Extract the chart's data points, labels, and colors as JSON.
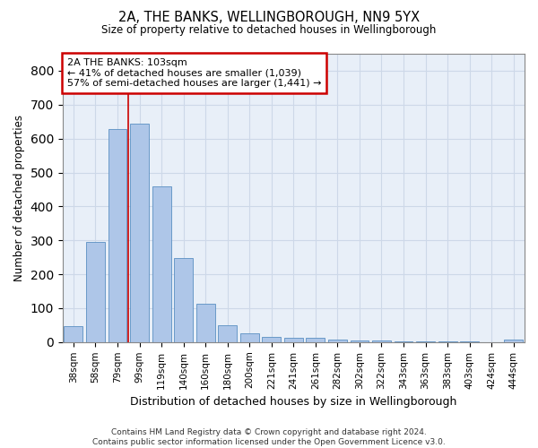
{
  "title_line1": "2A, THE BANKS, WELLINGBOROUGH, NN9 5YX",
  "title_line2": "Size of property relative to detached houses in Wellingborough",
  "xlabel": "Distribution of detached houses by size in Wellingborough",
  "ylabel": "Number of detached properties",
  "categories": [
    "38sqm",
    "58sqm",
    "79sqm",
    "99sqm",
    "119sqm",
    "140sqm",
    "160sqm",
    "180sqm",
    "200sqm",
    "221sqm",
    "241sqm",
    "261sqm",
    "282sqm",
    "302sqm",
    "322sqm",
    "343sqm",
    "363sqm",
    "383sqm",
    "403sqm",
    "424sqm",
    "444sqm"
  ],
  "values": [
    47,
    295,
    627,
    645,
    458,
    247,
    112,
    50,
    27,
    16,
    13,
    13,
    7,
    5,
    4,
    3,
    2,
    1,
    1,
    0,
    7
  ],
  "bar_color": "#aec6e8",
  "bar_edge_color": "#5a8fc2",
  "annotation_text": "2A THE BANKS: 103sqm\n← 41% of detached houses are smaller (1,039)\n57% of semi-detached houses are larger (1,441) →",
  "vline_x_index": 3,
  "annotation_box_color": "#ffffff",
  "annotation_box_edge_color": "#cc0000",
  "footer_text": "Contains HM Land Registry data © Crown copyright and database right 2024.\nContains public sector information licensed under the Open Government Licence v3.0.",
  "ylim": [
    0,
    850
  ],
  "yticks": [
    0,
    100,
    200,
    300,
    400,
    500,
    600,
    700,
    800
  ],
  "grid_color": "#cdd8e8",
  "background_color": "#e8eff8"
}
